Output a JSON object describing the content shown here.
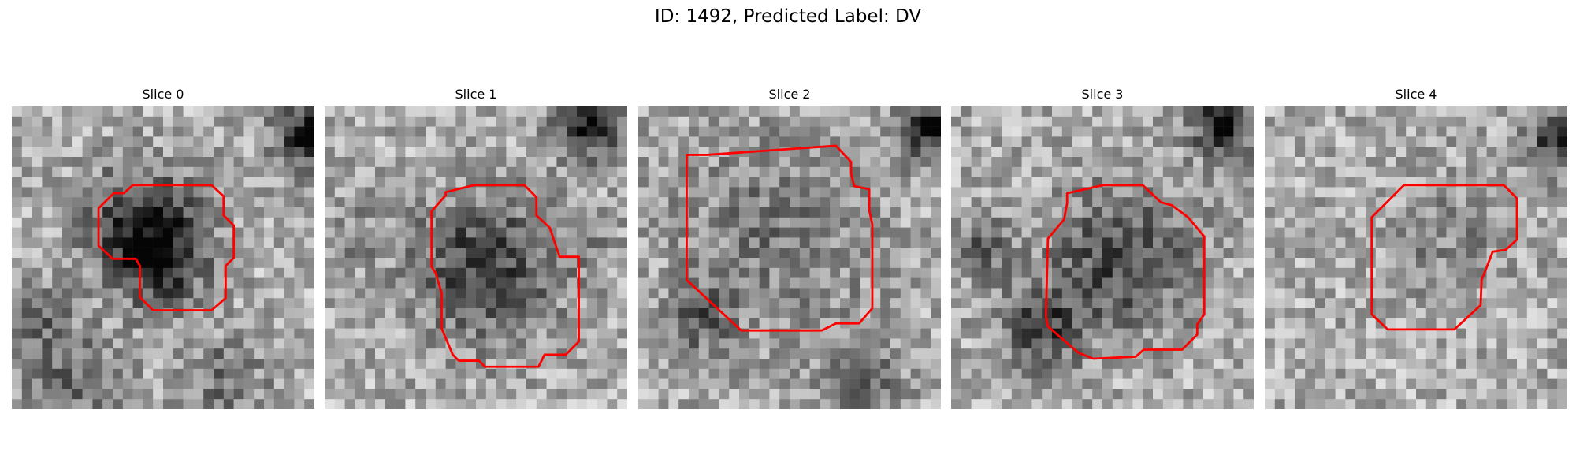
{
  "figure": {
    "title": "ID: 1492, Predicted Label: DV"
  },
  "contour_color": "#ff0000",
  "panels": [
    {
      "title": "Slice 0"
    },
    {
      "title": "Slice 1"
    },
    {
      "title": "Slice 2"
    },
    {
      "title": "Slice 3"
    },
    {
      "title": "Slice 4"
    }
  ]
}
